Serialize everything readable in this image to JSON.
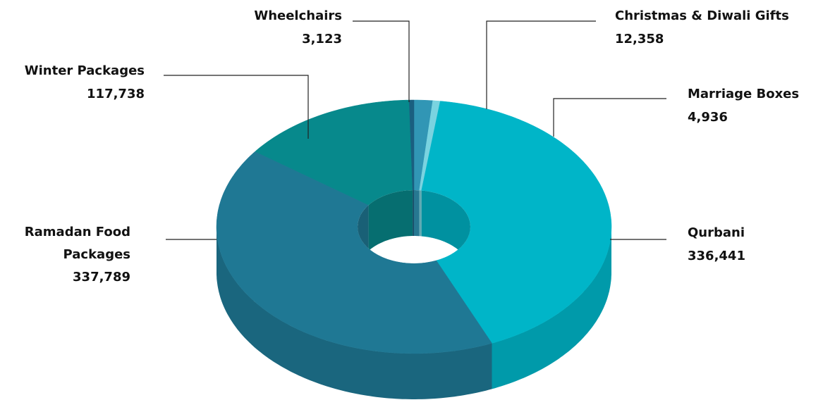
{
  "chart_data": {
    "type": "donut3d",
    "categories": [
      "Christmas & Diwali Gifts",
      "Marriage Boxes",
      "Qurbani",
      "Ramadan Food Packages",
      "Winter Packages",
      "Wheelchairs"
    ],
    "values": [
      12358,
      4936,
      336441,
      337789,
      117738,
      3123
    ],
    "value_labels": [
      "12,358",
      "4,936",
      "336,441",
      "337,789",
      "117,738",
      "3,123"
    ],
    "colors": [
      "#3196b5",
      "#7ad3e0",
      "#00b5c8",
      "#1f7894",
      "#07898c",
      "#1a5f80"
    ]
  }
}
